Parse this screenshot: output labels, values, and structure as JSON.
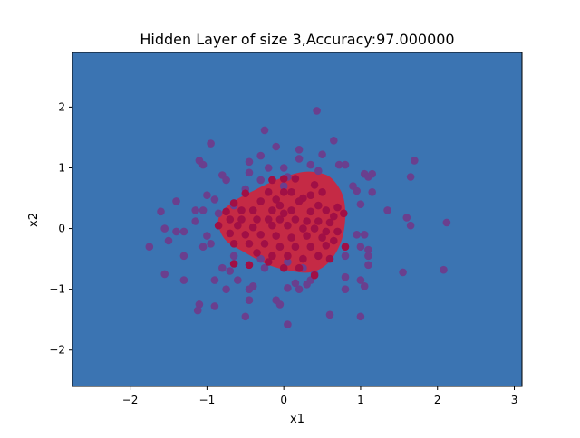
{
  "chart_data": {
    "type": "scatter",
    "title": "Hidden Layer of size 3,Accuracy:97.000000",
    "xlabel": "x1",
    "ylabel": "x2",
    "xlim": [
      -2.75,
      3.1
    ],
    "ylim": [
      -2.6,
      2.9
    ],
    "xticks": [
      "−2",
      "−1",
      "0",
      "1",
      "2",
      "3"
    ],
    "yticks": [
      "−2",
      "−1",
      "0",
      "1",
      "2"
    ],
    "xtick_values": [
      -2,
      -1,
      0,
      1,
      2,
      3
    ],
    "ytick_values": [
      -2,
      -1,
      0,
      1,
      2
    ],
    "grid": false,
    "colors": {
      "background_region": "#3b74b2",
      "decision_region": "#c52a45",
      "outer_points": "#6a3f8e",
      "inner_points": "#a10f45"
    },
    "decision_region_boundary": [
      [
        -0.85,
        0.05
      ],
      [
        -0.82,
        0.25
      ],
      [
        -0.65,
        0.45
      ],
      [
        -0.4,
        0.62
      ],
      [
        -0.1,
        0.8
      ],
      [
        0.2,
        0.92
      ],
      [
        0.4,
        0.93
      ],
      [
        0.6,
        0.85
      ],
      [
        0.75,
        0.6
      ],
      [
        0.8,
        0.3
      ],
      [
        0.78,
        -0.05
      ],
      [
        0.7,
        -0.35
      ],
      [
        0.55,
        -0.6
      ],
      [
        0.35,
        -0.72
      ],
      [
        0.1,
        -0.7
      ],
      [
        -0.2,
        -0.6
      ],
      [
        -0.5,
        -0.4
      ],
      [
        -0.75,
        -0.2
      ]
    ],
    "series": [
      {
        "color": "#6a3f8e",
        "points": [
          [
            0.43,
            1.94
          ],
          [
            -0.25,
            1.62
          ],
          [
            -0.1,
            1.35
          ],
          [
            0.2,
            1.3
          ],
          [
            0.65,
            1.45
          ],
          [
            -0.95,
            1.4
          ],
          [
            -0.3,
            1.2
          ],
          [
            0.5,
            1.22
          ],
          [
            -1.1,
            1.12
          ],
          [
            -0.45,
            1.1
          ],
          [
            0.2,
            1.15
          ],
          [
            0.35,
            1.05
          ],
          [
            0.8,
            1.05
          ],
          [
            -1.05,
            1.05
          ],
          [
            -0.2,
            1.0
          ],
          [
            0.0,
            1.0
          ],
          [
            -0.45,
            0.92
          ],
          [
            1.05,
            0.9
          ],
          [
            1.1,
            0.85
          ],
          [
            1.65,
            0.85
          ],
          [
            -0.8,
            0.88
          ],
          [
            -0.75,
            0.8
          ],
          [
            0.05,
            0.85
          ],
          [
            0.0,
            0.7
          ],
          [
            -0.3,
            0.8
          ],
          [
            -0.5,
            0.65
          ],
          [
            0.9,
            0.7
          ],
          [
            0.95,
            0.62
          ],
          [
            1.15,
            0.6
          ],
          [
            -1.0,
            0.55
          ],
          [
            -0.9,
            0.48
          ],
          [
            -1.4,
            0.45
          ],
          [
            -0.65,
            0.38
          ],
          [
            -1.15,
            0.3
          ],
          [
            -1.05,
            0.3
          ],
          [
            1.0,
            0.4
          ],
          [
            1.35,
            0.3
          ],
          [
            -1.6,
            0.28
          ],
          [
            -0.85,
            0.25
          ],
          [
            -1.15,
            0.12
          ],
          [
            1.6,
            0.18
          ],
          [
            1.65,
            0.05
          ],
          [
            2.12,
            0.1
          ],
          [
            -1.55,
            -0.0
          ],
          [
            -1.4,
            -0.05
          ],
          [
            -1.3,
            -0.05
          ],
          [
            -1.5,
            -0.2
          ],
          [
            -1.0,
            -0.12
          ],
          [
            0.95,
            -0.1
          ],
          [
            1.05,
            -0.1
          ],
          [
            -1.75,
            -0.3
          ],
          [
            -1.05,
            -0.3
          ],
          [
            -0.95,
            -0.25
          ],
          [
            1.0,
            -0.3
          ],
          [
            1.1,
            -0.35
          ],
          [
            -1.3,
            -0.45
          ],
          [
            -0.65,
            -0.45
          ],
          [
            -0.3,
            -0.5
          ],
          [
            0.8,
            -0.45
          ],
          [
            1.1,
            -0.45
          ],
          [
            -1.55,
            -0.75
          ],
          [
            -0.8,
            -0.65
          ],
          [
            -0.7,
            -0.7
          ],
          [
            -0.25,
            -0.65
          ],
          [
            0.05,
            -0.55
          ],
          [
            0.25,
            -0.65
          ],
          [
            0.4,
            -0.75
          ],
          [
            1.1,
            -0.6
          ],
          [
            1.55,
            -0.72
          ],
          [
            2.08,
            -0.68
          ],
          [
            -1.3,
            -0.85
          ],
          [
            -0.9,
            -0.85
          ],
          [
            -0.6,
            -0.85
          ],
          [
            0.35,
            -0.85
          ],
          [
            0.3,
            -0.92
          ],
          [
            0.05,
            -0.98
          ],
          [
            0.8,
            -0.8
          ],
          [
            1.0,
            -0.85
          ],
          [
            1.05,
            -0.95
          ],
          [
            0.8,
            -1.0
          ],
          [
            -0.75,
            -1.0
          ],
          [
            -0.45,
            -1.0
          ],
          [
            -0.4,
            -0.95
          ],
          [
            0.15,
            -0.9
          ],
          [
            0.2,
            -1.0
          ],
          [
            -1.1,
            -1.25
          ],
          [
            -0.9,
            -1.28
          ],
          [
            -0.45,
            -1.18
          ],
          [
            -0.1,
            -1.18
          ],
          [
            -0.05,
            -1.25
          ],
          [
            -1.12,
            -1.35
          ],
          [
            -0.5,
            -1.45
          ],
          [
            0.6,
            -1.42
          ],
          [
            1.0,
            -1.45
          ],
          [
            0.05,
            -1.58
          ],
          [
            0.45,
            0.95
          ],
          [
            0.72,
            1.05
          ],
          [
            1.15,
            0.9
          ],
          [
            1.7,
            1.12
          ]
        ]
      },
      {
        "color": "#a10f45",
        "points": [
          [
            0.0,
            0.82
          ],
          [
            0.15,
            0.82
          ],
          [
            -0.15,
            0.8
          ],
          [
            0.4,
            0.72
          ],
          [
            -0.5,
            0.58
          ],
          [
            -0.2,
            0.6
          ],
          [
            0.0,
            0.6
          ],
          [
            0.25,
            0.5
          ],
          [
            0.1,
            0.6
          ],
          [
            -0.65,
            0.42
          ],
          [
            -0.3,
            0.45
          ],
          [
            -0.1,
            0.48
          ],
          [
            0.2,
            0.45
          ],
          [
            0.45,
            0.38
          ],
          [
            0.7,
            0.35
          ],
          [
            0.78,
            0.25
          ],
          [
            -0.75,
            0.28
          ],
          [
            -0.55,
            0.3
          ],
          [
            -0.4,
            0.3
          ],
          [
            -0.15,
            0.3
          ],
          [
            0.0,
            0.25
          ],
          [
            0.1,
            0.3
          ],
          [
            0.35,
            0.28
          ],
          [
            0.55,
            0.3
          ],
          [
            0.65,
            0.2
          ],
          [
            -0.7,
            0.15
          ],
          [
            -0.55,
            0.15
          ],
          [
            -0.35,
            0.15
          ],
          [
            -0.2,
            0.15
          ],
          [
            -0.05,
            0.15
          ],
          [
            0.15,
            0.15
          ],
          [
            0.3,
            0.12
          ],
          [
            0.45,
            0.12
          ],
          [
            0.6,
            0.1
          ],
          [
            -0.85,
            0.05
          ],
          [
            -0.6,
            0.05
          ],
          [
            -0.4,
            0.02
          ],
          [
            -0.15,
            0.05
          ],
          [
            0.05,
            0.05
          ],
          [
            0.25,
            0.0
          ],
          [
            0.4,
            0.0
          ],
          [
            0.55,
            -0.05
          ],
          [
            0.7,
            -0.05
          ],
          [
            -0.7,
            -0.08
          ],
          [
            -0.5,
            -0.1
          ],
          [
            -0.3,
            -0.1
          ],
          [
            -0.1,
            -0.12
          ],
          [
            0.1,
            -0.15
          ],
          [
            0.3,
            -0.12
          ],
          [
            0.5,
            -0.15
          ],
          [
            0.65,
            -0.2
          ],
          [
            0.8,
            -0.3
          ],
          [
            -0.65,
            -0.25
          ],
          [
            -0.45,
            -0.25
          ],
          [
            -0.25,
            -0.25
          ],
          [
            -0.05,
            -0.3
          ],
          [
            0.15,
            -0.3
          ],
          [
            0.35,
            -0.3
          ],
          [
            0.55,
            -0.28
          ],
          [
            -0.35,
            -0.4
          ],
          [
            -0.15,
            -0.45
          ],
          [
            0.05,
            -0.45
          ],
          [
            0.25,
            -0.5
          ],
          [
            0.45,
            -0.45
          ],
          [
            -0.2,
            -0.55
          ],
          [
            0.0,
            -0.65
          ],
          [
            0.2,
            -0.65
          ],
          [
            0.4,
            -0.77
          ],
          [
            -0.65,
            -0.58
          ],
          [
            -0.45,
            -0.6
          ],
          [
            0.6,
            -0.5
          ],
          [
            0.35,
            0.55
          ],
          [
            -0.05,
            0.38
          ],
          [
            0.5,
            0.6
          ]
        ]
      }
    ]
  }
}
